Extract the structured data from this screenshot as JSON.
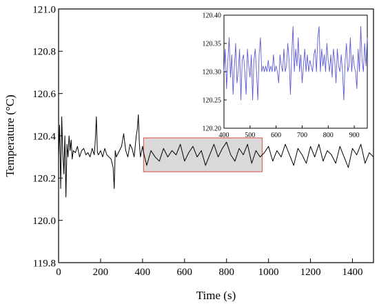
{
  "chart_data": [
    {
      "type": "line",
      "xlabel": "Time (s)",
      "ylabel": "Temperature (°C)",
      "xlim": [
        0,
        1500
      ],
      "ylim": [
        119.8,
        121.0
      ],
      "xticks": [
        "0",
        "200",
        "400",
        "600",
        "800",
        "1000",
        "1200",
        "1400"
      ],
      "yticks": [
        "119.8",
        "120.0",
        "120.2",
        "120.4",
        "120.6",
        "120.8",
        "121.0"
      ],
      "grid": false,
      "line_color": "#000000",
      "highlight": {
        "x": [
          405,
          970
        ],
        "y": [
          120.23,
          120.39
        ],
        "fill": "#d9d9d9",
        "stroke": "#e06060"
      },
      "series": [
        {
          "x": [
            0,
            5,
            10,
            15,
            20,
            25,
            30,
            35,
            40,
            45,
            50,
            55,
            60,
            65,
            70,
            80,
            90,
            100,
            110,
            120,
            130,
            140,
            150,
            160,
            170,
            175,
            180,
            185,
            190,
            200,
            210,
            220,
            230,
            240,
            250,
            260,
            265,
            270,
            275,
            280,
            290,
            300,
            310,
            320,
            330,
            340,
            350,
            360,
            370,
            375,
            380,
            385,
            390,
            400,
            405,
            420,
            440,
            460,
            480,
            500,
            520,
            540,
            560,
            580,
            600,
            620,
            640,
            660,
            680,
            700,
            720,
            740,
            760,
            780,
            800,
            820,
            840,
            860,
            880,
            900,
            920,
            940,
            960,
            980,
            1000,
            1020,
            1040,
            1060,
            1080,
            1100,
            1120,
            1140,
            1160,
            1180,
            1200,
            1220,
            1240,
            1260,
            1280,
            1300,
            1320,
            1340,
            1360,
            1380,
            1400,
            1420,
            1440,
            1460,
            1480,
            1500
          ],
          "y": [
            120.3,
            120.45,
            120.15,
            120.49,
            120.32,
            120.22,
            120.4,
            120.11,
            120.36,
            120.3,
            120.4,
            120.33,
            120.38,
            120.29,
            120.33,
            120.32,
            120.35,
            120.3,
            120.33,
            120.34,
            120.31,
            120.32,
            120.3,
            120.34,
            120.31,
            120.38,
            120.49,
            120.32,
            120.31,
            120.33,
            120.3,
            120.34,
            120.31,
            120.3,
            120.29,
            120.25,
            120.15,
            120.33,
            120.3,
            120.31,
            120.33,
            120.35,
            120.41,
            120.33,
            120.3,
            120.36,
            120.34,
            120.3,
            120.4,
            120.43,
            120.5,
            120.36,
            120.3,
            120.35,
            120.32,
            120.26,
            120.33,
            120.3,
            120.28,
            120.34,
            120.3,
            120.33,
            120.31,
            120.36,
            120.28,
            120.32,
            120.35,
            120.3,
            120.33,
            120.26,
            120.31,
            120.36,
            120.3,
            120.34,
            120.37,
            120.31,
            120.28,
            120.34,
            120.31,
            120.36,
            120.27,
            120.33,
            120.3,
            120.32,
            120.35,
            120.28,
            120.33,
            120.3,
            120.36,
            120.31,
            120.26,
            120.34,
            120.31,
            120.27,
            120.35,
            120.3,
            120.36,
            120.28,
            120.33,
            120.31,
            120.27,
            120.35,
            120.3,
            120.25,
            120.34,
            120.31,
            120.36,
            120.27,
            120.32,
            120.3
          ]
        }
      ]
    },
    {
      "type": "line",
      "xlim": [
        400,
        950
      ],
      "ylim": [
        120.2,
        120.4
      ],
      "xticks": [
        "400",
        "500",
        "600",
        "700",
        "800",
        "900"
      ],
      "yticks": [
        "120.20",
        "120.25",
        "120.30",
        "120.35",
        "120.40"
      ],
      "line_color": "#5b5bd6",
      "series": [
        {
          "x": [
            400,
            405,
            410,
            415,
            420,
            425,
            430,
            435,
            440,
            445,
            450,
            455,
            460,
            465,
            470,
            475,
            480,
            485,
            490,
            495,
            500,
            505,
            510,
            515,
            520,
            525,
            530,
            535,
            540,
            545,
            550,
            555,
            560,
            565,
            570,
            575,
            580,
            585,
            590,
            595,
            600,
            605,
            610,
            615,
            620,
            625,
            630,
            635,
            640,
            645,
            650,
            655,
            660,
            665,
            670,
            675,
            680,
            685,
            690,
            695,
            700,
            705,
            710,
            715,
            720,
            725,
            730,
            735,
            740,
            745,
            750,
            755,
            760,
            765,
            770,
            775,
            780,
            785,
            790,
            795,
            800,
            805,
            810,
            815,
            820,
            825,
            830,
            835,
            840,
            845,
            850,
            855,
            860,
            865,
            870,
            875,
            880,
            885,
            890,
            895,
            900,
            905,
            910,
            915,
            920,
            925,
            930,
            935,
            940,
            945,
            950
          ],
          "y": [
            120.3,
            120.34,
            120.27,
            120.32,
            120.36,
            120.29,
            120.33,
            120.26,
            120.31,
            120.35,
            120.28,
            120.3,
            120.34,
            120.25,
            120.32,
            120.33,
            120.3,
            120.26,
            120.34,
            120.31,
            120.29,
            120.33,
            120.25,
            120.32,
            120.34,
            120.3,
            120.25,
            120.33,
            120.36,
            120.3,
            120.31,
            120.3,
            120.31,
            120.3,
            120.32,
            120.3,
            120.31,
            120.3,
            120.33,
            120.3,
            120.31,
            120.3,
            120.28,
            120.33,
            120.31,
            120.3,
            120.34,
            120.3,
            120.31,
            120.35,
            120.32,
            120.26,
            120.33,
            120.38,
            120.3,
            120.34,
            120.31,
            120.36,
            120.3,
            120.33,
            120.28,
            120.31,
            120.34,
            120.3,
            120.33,
            120.3,
            120.32,
            120.31,
            120.3,
            120.33,
            120.34,
            120.3,
            120.36,
            120.38,
            120.3,
            120.34,
            120.31,
            120.33,
            120.3,
            120.35,
            120.32,
            120.3,
            120.33,
            120.29,
            120.34,
            120.32,
            120.28,
            120.34,
            120.31,
            120.3,
            120.33,
            120.3,
            120.25,
            120.32,
            120.35,
            120.3,
            120.31,
            120.36,
            120.3,
            120.33,
            120.31,
            120.3,
            120.27,
            120.34,
            120.3,
            120.38,
            120.32,
            120.3,
            120.35,
            120.31,
            120.36
          ]
        }
      ]
    }
  ]
}
